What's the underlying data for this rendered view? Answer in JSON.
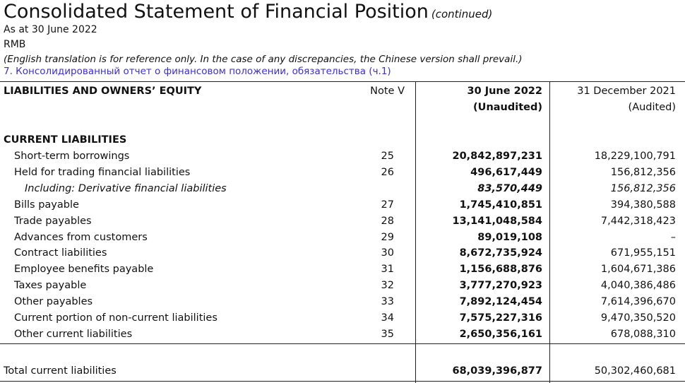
{
  "header": {
    "title": "Consolidated Statement of Financial Position",
    "title_suffix": "(continued)",
    "date_line": "As at 30 June 2022",
    "currency": "RMB",
    "disclaimer": "(English translation is for reference only. In the case of any discrepancies, the Chinese version shall prevail.)",
    "russian_caption": "7. Консолидированный отчет о финансовом положении, обязательства (ч.1)"
  },
  "table": {
    "col_label": "LIABILITIES AND OWNERS’ EQUITY",
    "col_note": "Note V",
    "col_current_line1": "30 June 2022",
    "col_current_line2": "(Unaudited)",
    "col_prior_line1": "31 December 2021",
    "col_prior_line2": "(Audited)",
    "section_title": "CURRENT LIABILITIES",
    "rows": [
      {
        "label": "Short-term borrowings",
        "note": "25",
        "current": "20,842,897,231",
        "prior": "18,229,100,791"
      },
      {
        "label": "Held for trading financial liabilities",
        "note": "26",
        "current": "496,617,449",
        "prior": "156,812,356"
      },
      {
        "label": "Including: Derivative financial liabilities",
        "note": "",
        "current": "83,570,449",
        "prior": "156,812,356"
      },
      {
        "label": "Bills payable",
        "note": "27",
        "current": "1,745,410,851",
        "prior": "394,380,588"
      },
      {
        "label": "Trade payables",
        "note": "28",
        "current": "13,141,048,584",
        "prior": "7,442,318,423"
      },
      {
        "label": "Advances from customers",
        "note": "29",
        "current": "89,019,108",
        "prior": "–"
      },
      {
        "label": "Contract liabilities",
        "note": "30",
        "current": "8,672,735,924",
        "prior": "671,955,151"
      },
      {
        "label": "Employee benefits payable",
        "note": "31",
        "current": "1,156,688,876",
        "prior": "1,604,671,386"
      },
      {
        "label": "Taxes payable",
        "note": "32",
        "current": "3,777,270,923",
        "prior": "4,040,386,486"
      },
      {
        "label": "Other payables",
        "note": "33",
        "current": "7,892,124,454",
        "prior": "7,614,396,670"
      },
      {
        "label": "Current portion of non-current liabilities",
        "note": "34",
        "current": "7,575,227,316",
        "prior": "9,470,350,520"
      },
      {
        "label": "Other current liabilities",
        "note": "35",
        "current": "2,650,356,161",
        "prior": "678,088,310"
      }
    ],
    "total": {
      "label": "Total current liabilities",
      "current": "68,039,396,877",
      "prior": "50,302,460,681"
    }
  }
}
